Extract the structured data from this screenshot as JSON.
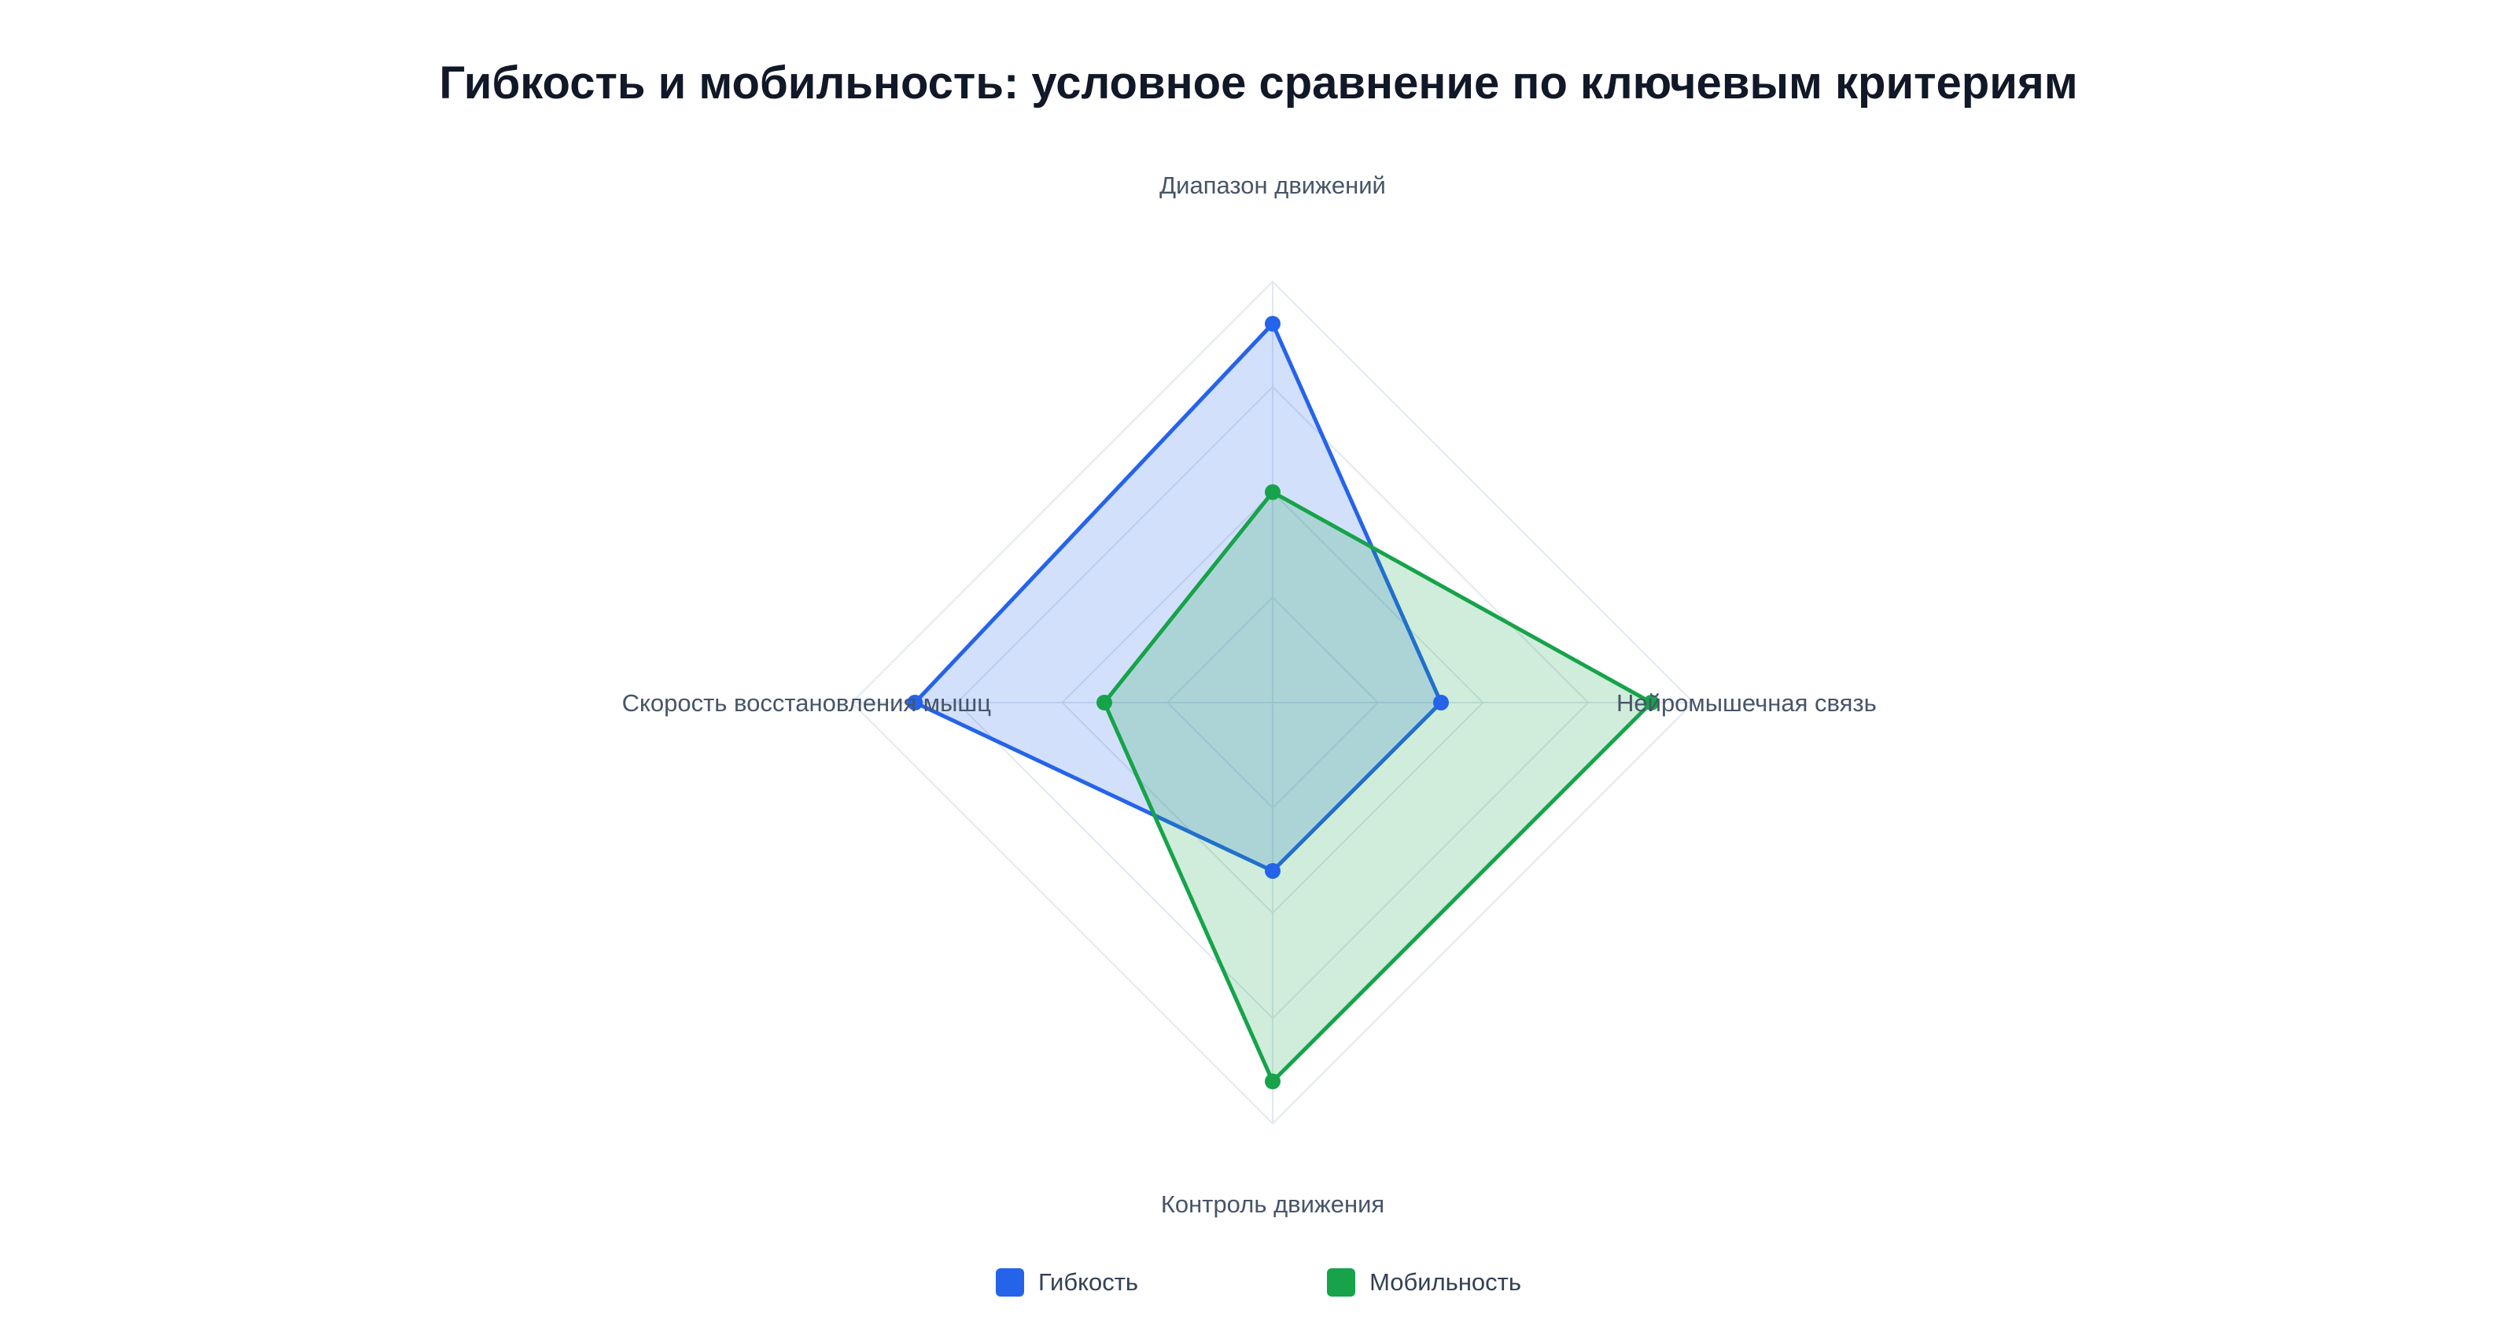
{
  "chart_data": {
    "type": "radar",
    "title": "Гибкость и мобильность: условное сравнение по ключевым критериям",
    "axes": [
      "Диапазон движений",
      "Нейромышечная связь",
      "Контроль движения",
      "Скорость восстановления мышц"
    ],
    "rlim": [
      0,
      100
    ],
    "grid": true,
    "legend_position": "bottom",
    "series": [
      {
        "name": "Гибкость",
        "values": [
          90,
          40,
          40,
          85
        ],
        "color": "#2563eb",
        "fill": "rgba(37,99,235,0.2)"
      },
      {
        "name": "Мобильность",
        "values": [
          50,
          90,
          90,
          40
        ],
        "color": "#16a34a",
        "fill": "rgba(22,163,74,0.2)"
      }
    ]
  }
}
